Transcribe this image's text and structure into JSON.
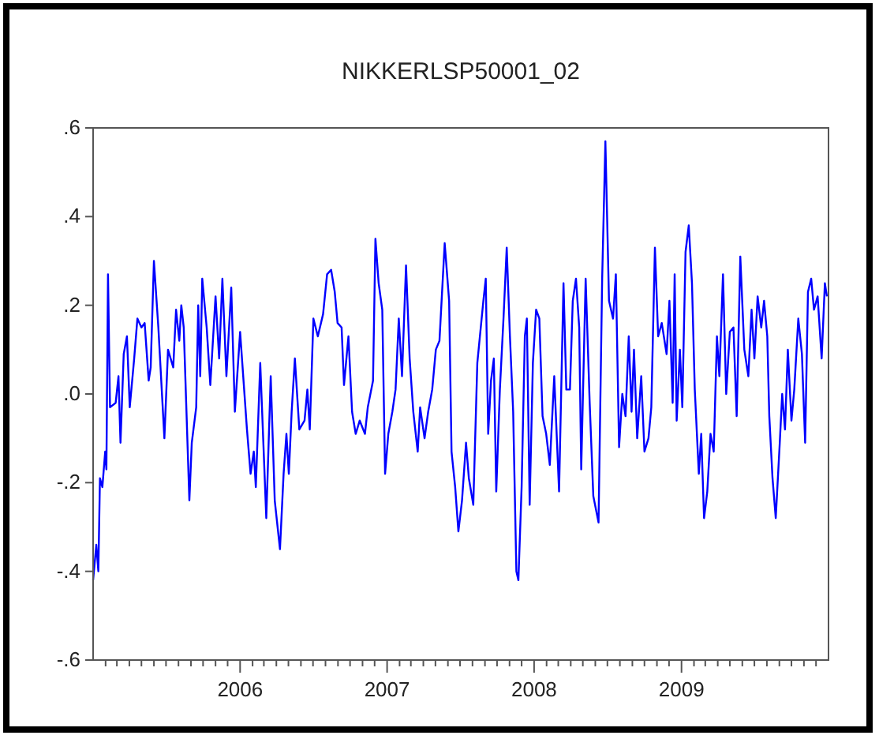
{
  "chart_data": {
    "type": "line",
    "title": "NIKKERLSP50001_02",
    "x": [
      "2005-01-01",
      "2005-01-09",
      "2005-01-14",
      "2005-01-18",
      "2005-01-24",
      "2005-01-31",
      "2005-02-03",
      "2005-02-07",
      "2005-02-12",
      "2005-02-26",
      "2005-03-05",
      "2005-03-10",
      "2005-03-18",
      "2005-03-26",
      "2005-04-02",
      "2005-04-13",
      "2005-04-21",
      "2005-05-01",
      "2005-05-09",
      "2005-05-19",
      "2005-05-24",
      "2005-06-01",
      "2005-06-12",
      "2005-06-27",
      "2005-07-06",
      "2005-07-19",
      "2005-07-26",
      "2005-08-03",
      "2005-08-08",
      "2005-08-14",
      "2005-08-28",
      "2005-09-03",
      "2005-09-14",
      "2005-09-19",
      "2005-09-24",
      "2005-09-29",
      "2005-10-10",
      "2005-10-19",
      "2005-11-01",
      "2005-11-10",
      "2005-11-18",
      "2005-11-28",
      "2005-12-10",
      "2005-12-19",
      "2006-01-01",
      "2006-01-18",
      "2006-01-27",
      "2006-02-04",
      "2006-02-09",
      "2006-02-20",
      "2006-03-07",
      "2006-03-18",
      "2006-03-28",
      "2006-04-10",
      "2006-04-19",
      "2006-04-26",
      "2006-05-02",
      "2006-05-09",
      "2006-05-17",
      "2006-05-28",
      "2006-06-10",
      "2006-06-17",
      "2006-06-23",
      "2006-07-02",
      "2006-07-13",
      "2006-07-26",
      "2006-08-05",
      "2006-08-15",
      "2006-08-24",
      "2006-08-31",
      "2006-09-10",
      "2006-09-16",
      "2006-09-27",
      "2006-10-06",
      "2006-10-15",
      "2006-10-25",
      "2006-11-07",
      "2006-11-14",
      "2006-11-27",
      "2006-12-03",
      "2006-12-11",
      "2006-12-20",
      "2006-12-27",
      "2007-01-04",
      "2007-01-14",
      "2007-01-22",
      "2007-01-30",
      "2007-02-07",
      "2007-02-17",
      "2007-02-26",
      "2007-03-07",
      "2007-03-18",
      "2007-03-24",
      "2007-04-04",
      "2007-04-13",
      "2007-04-23",
      "2007-05-02",
      "2007-05-11",
      "2007-05-24",
      "2007-06-04",
      "2007-06-10",
      "2007-06-19",
      "2007-06-27",
      "2007-07-06",
      "2007-07-16",
      "2007-07-23",
      "2007-08-03",
      "2007-08-13",
      "2007-08-28",
      "2007-09-03",
      "2007-09-09",
      "2007-09-16",
      "2007-09-23",
      "2007-09-29",
      "2007-10-08",
      "2007-10-17",
      "2007-10-25",
      "2007-11-02",
      "2007-11-10",
      "2007-11-18",
      "2007-11-23",
      "2007-12-01",
      "2007-12-09",
      "2007-12-14",
      "2007-12-21",
      "2007-12-29",
      "2008-01-06",
      "2008-01-14",
      "2008-01-22",
      "2008-01-31",
      "2008-02-09",
      "2008-02-20",
      "2008-03-03",
      "2008-03-14",
      "2008-03-21",
      "2008-03-30",
      "2008-04-06",
      "2008-04-14",
      "2008-04-22",
      "2008-04-27",
      "2008-05-08",
      "2008-05-18",
      "2008-05-27",
      "2008-06-09",
      "2008-06-18",
      "2008-06-26",
      "2008-07-05",
      "2008-07-15",
      "2008-07-22",
      "2008-07-30",
      "2008-08-07",
      "2008-08-15",
      "2008-08-23",
      "2008-08-30",
      "2008-09-05",
      "2008-09-13",
      "2008-09-23",
      "2008-10-01",
      "2008-10-11",
      "2008-10-18",
      "2008-10-27",
      "2008-11-04",
      "2008-11-13",
      "2008-11-25",
      "2008-12-02",
      "2008-12-10",
      "2008-12-15",
      "2008-12-20",
      "2008-12-28",
      "2009-01-03",
      "2009-01-11",
      "2009-01-19",
      "2009-01-27",
      "2009-02-03",
      "2009-02-13",
      "2009-02-19",
      "2009-02-26",
      "2009-03-06",
      "2009-03-14",
      "2009-03-22",
      "2009-03-30",
      "2009-04-05",
      "2009-04-14",
      "2009-04-22",
      "2009-05-01",
      "2009-05-10",
      "2009-05-18",
      "2009-05-27",
      "2009-06-06",
      "2009-06-16",
      "2009-06-24",
      "2009-07-01",
      "2009-07-09",
      "2009-07-18",
      "2009-07-25",
      "2009-08-02",
      "2009-08-07",
      "2009-08-15",
      "2009-08-23",
      "2009-09-02",
      "2009-09-08",
      "2009-09-15",
      "2009-09-22",
      "2009-10-01",
      "2009-10-08",
      "2009-10-18",
      "2009-10-27",
      "2009-11-04",
      "2009-11-11",
      "2009-11-19",
      "2009-11-26",
      "2009-12-05",
      "2009-12-15",
      "2009-12-23",
      "2009-12-28"
    ],
    "series": [
      {
        "color": "#0000ff",
        "values": [
          -0.42,
          -0.34,
          -0.4,
          -0.19,
          -0.21,
          -0.13,
          -0.17,
          0.27,
          -0.03,
          -0.02,
          0.04,
          -0.11,
          0.09,
          0.13,
          -0.03,
          0.08,
          0.17,
          0.15,
          0.16,
          0.03,
          0.06,
          0.3,
          0.15,
          -0.1,
          0.1,
          0.06,
          0.19,
          0.12,
          0.2,
          0.15,
          -0.24,
          -0.11,
          -0.03,
          0.2,
          0.04,
          0.26,
          0.15,
          0.02,
          0.22,
          0.08,
          0.26,
          0.04,
          0.24,
          -0.04,
          0.14,
          -0.08,
          -0.18,
          -0.13,
          -0.21,
          0.07,
          -0.28,
          0.04,
          -0.24,
          -0.35,
          -0.18,
          -0.09,
          -0.18,
          -0.04,
          0.08,
          -0.08,
          -0.06,
          0.01,
          -0.08,
          0.17,
          0.13,
          0.18,
          0.27,
          0.28,
          0.23,
          0.16,
          0.15,
          0.02,
          0.13,
          -0.04,
          -0.09,
          -0.06,
          -0.09,
          -0.03,
          0.03,
          0.35,
          0.25,
          0.19,
          -0.18,
          -0.09,
          -0.04,
          0.01,
          0.17,
          0.04,
          0.29,
          0.08,
          -0.04,
          -0.13,
          -0.03,
          -0.1,
          -0.04,
          0.01,
          0.1,
          0.12,
          0.34,
          0.21,
          -0.13,
          -0.21,
          -0.31,
          -0.24,
          -0.11,
          -0.19,
          -0.25,
          0.07,
          0.21,
          0.26,
          -0.09,
          0.03,
          0.08,
          -0.22,
          0.01,
          0.17,
          0.33,
          0.13,
          -0.04,
          -0.4,
          -0.42,
          -0.21,
          0.13,
          0.17,
          -0.25,
          0.07,
          0.19,
          0.17,
          -0.05,
          -0.09,
          -0.16,
          0.04,
          -0.22,
          0.25,
          0.01,
          0.01,
          0.21,
          0.26,
          0.15,
          -0.17,
          0.26,
          -0.02,
          -0.23,
          -0.29,
          0.26,
          0.57,
          0.21,
          0.17,
          0.27,
          -0.12,
          0.0,
          -0.05,
          0.13,
          -0.04,
          0.1,
          -0.1,
          0.04,
          -0.13,
          -0.1,
          -0.03,
          0.33,
          0.13,
          0.16,
          0.09,
          0.21,
          -0.02,
          0.27,
          -0.06,
          0.1,
          -0.03,
          0.32,
          0.38,
          0.25,
          0.01,
          -0.18,
          -0.09,
          -0.28,
          -0.22,
          -0.09,
          -0.13,
          0.13,
          0.04,
          0.27,
          0.0,
          0.14,
          0.15,
          -0.05,
          0.31,
          0.1,
          0.04,
          0.19,
          0.08,
          0.22,
          0.15,
          0.21,
          0.13,
          -0.05,
          -0.19,
          -0.28,
          -0.11,
          0.0,
          -0.08,
          0.1,
          -0.06,
          0.01,
          0.17,
          0.09,
          -0.11,
          0.23,
          0.26,
          0.19,
          0.22,
          0.08,
          0.25,
          0.22
        ]
      }
    ],
    "xlim": [
      "2005-01-01",
      "2010-01-01"
    ],
    "xticks": [
      {
        "value": "2005-02",
        "label": null
      },
      {
        "value": "2005-03",
        "label": null
      },
      {
        "value": "2005-04",
        "label": null
      },
      {
        "value": "2005-05",
        "label": null
      },
      {
        "value": "2005-06",
        "label": null
      },
      {
        "value": "2005-07",
        "label": null
      },
      {
        "value": "2005-08",
        "label": null
      },
      {
        "value": "2005-09",
        "label": null
      },
      {
        "value": "2005-10",
        "label": null
      },
      {
        "value": "2005-11",
        "label": null
      },
      {
        "value": "2005-12",
        "label": null
      },
      {
        "value": "2006",
        "label": "2006"
      },
      {
        "value": "2006-02",
        "label": null
      },
      {
        "value": "2006-03",
        "label": null
      },
      {
        "value": "2006-04",
        "label": null
      },
      {
        "value": "2006-05",
        "label": null
      },
      {
        "value": "2006-06",
        "label": null
      },
      {
        "value": "2006-07",
        "label": null
      },
      {
        "value": "2006-08",
        "label": null
      },
      {
        "value": "2006-09",
        "label": null
      },
      {
        "value": "2006-10",
        "label": null
      },
      {
        "value": "2006-11",
        "label": null
      },
      {
        "value": "2006-12",
        "label": null
      },
      {
        "value": "2007",
        "label": "2007"
      },
      {
        "value": "2007-02",
        "label": null
      },
      {
        "value": "2007-03",
        "label": null
      },
      {
        "value": "2007-04",
        "label": null
      },
      {
        "value": "2007-05",
        "label": null
      },
      {
        "value": "2007-06",
        "label": null
      },
      {
        "value": "2007-07",
        "label": null
      },
      {
        "value": "2007-08",
        "label": null
      },
      {
        "value": "2007-09",
        "label": null
      },
      {
        "value": "2007-10",
        "label": null
      },
      {
        "value": "2007-11",
        "label": null
      },
      {
        "value": "2007-12",
        "label": null
      },
      {
        "value": "2008",
        "label": "2008"
      },
      {
        "value": "2008-02",
        "label": null
      },
      {
        "value": "2008-03",
        "label": null
      },
      {
        "value": "2008-04",
        "label": null
      },
      {
        "value": "2008-05",
        "label": null
      },
      {
        "value": "2008-06",
        "label": null
      },
      {
        "value": "2008-07",
        "label": null
      },
      {
        "value": "2008-08",
        "label": null
      },
      {
        "value": "2008-09",
        "label": null
      },
      {
        "value": "2008-10",
        "label": null
      },
      {
        "value": "2008-11",
        "label": null
      },
      {
        "value": "2008-12",
        "label": null
      },
      {
        "value": "2009",
        "label": "2009"
      },
      {
        "value": "2009-02",
        "label": null
      },
      {
        "value": "2009-03",
        "label": null
      },
      {
        "value": "2009-04",
        "label": null
      },
      {
        "value": "2009-05",
        "label": null
      },
      {
        "value": "2009-06",
        "label": null
      },
      {
        "value": "2009-07",
        "label": null
      },
      {
        "value": "2009-08",
        "label": null
      },
      {
        "value": "2009-09",
        "label": null
      },
      {
        "value": "2009-10",
        "label": null
      },
      {
        "value": "2009-11",
        "label": null
      },
      {
        "value": "2009-12",
        "label": null
      }
    ],
    "ylim": [
      -0.6,
      0.6
    ],
    "yticks": [
      {
        "value": -0.6,
        "label": "-.6"
      },
      {
        "value": -0.4,
        "label": "-.4"
      },
      {
        "value": -0.2,
        "label": "-.2"
      },
      {
        "value": 0,
        "label": ".0"
      },
      {
        "value": 0.2,
        "label": ".2"
      },
      {
        "value": 0.4,
        "label": ".4"
      },
      {
        "value": 0.6,
        "label": ".6"
      }
    ],
    "grid": false,
    "line_style": "solid",
    "marker": "none"
  }
}
